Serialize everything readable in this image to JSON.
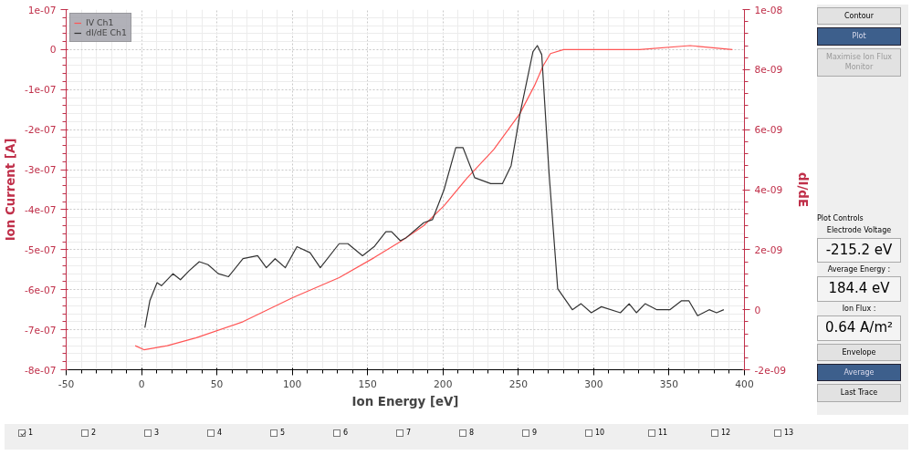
{
  "chart_data": {
    "type": "line",
    "xlabel": "Ion Energy [eV]",
    "ylabel": "Ion Current [A]",
    "y2label": "dI/dE",
    "xlim": [
      -50,
      400
    ],
    "xticks": [
      -50,
      0,
      50,
      100,
      150,
      200,
      250,
      300,
      350,
      400
    ],
    "ylim": [
      -8e-07,
      1e-07
    ],
    "yticks": [
      -8e-07,
      -7e-07,
      -6e-07,
      -5e-07,
      -4e-07,
      -3e-07,
      -2e-07,
      -1e-07,
      0,
      1e-07
    ],
    "y2lim": [
      -2e-09,
      1e-08
    ],
    "y2ticks": [
      -2e-09,
      0,
      2e-09,
      4e-09,
      6e-09,
      8e-09,
      1e-08
    ],
    "grid": true,
    "legend": "top left",
    "marker": "none",
    "line_style": "solid",
    "series": [
      {
        "name": "IV Ch1",
        "color": "#ff5555",
        "x": [
          -4.2,
          1.6,
          17.1,
          36.4,
          67.3,
          100.2,
          131.1,
          154.3,
          171.7,
          187.2,
          200.7,
          216.2,
          233.6,
          251.0,
          260.7,
          266.5,
          271.3,
          280,
          330.3,
          364,
          392
        ],
        "values": [
          -7.4e-07,
          -7.5e-07,
          -7.4e-07,
          -7.2e-07,
          -6.8e-07,
          -6.2e-07,
          -5.7e-07,
          -5.2e-07,
          -4.8e-07,
          -4.4e-07,
          -3.9e-07,
          -3.2e-07,
          -2.5e-07,
          -1.6e-07,
          -9e-08,
          -4e-08,
          -1e-08,
          0,
          0,
          1e-08,
          0
        ]
      },
      {
        "name": "dI/dE Ch1",
        "color": "#333333",
        "axis": "y2",
        "x": [
          2.2,
          5.5,
          10.3,
          13.2,
          20.9,
          25.8,
          31.6,
          38.3,
          44.1,
          50.9,
          57.7,
          67.3,
          77.0,
          82.8,
          88.6,
          95.4,
          103.1,
          111.8,
          118.6,
          131.1,
          136.9,
          146.6,
          154.3,
          162.1,
          165.9,
          171.7,
          175.6,
          187.2,
          193.0,
          200.7,
          208.5,
          213.3,
          221.0,
          231.7,
          239.4,
          245.2,
          251.0,
          259.7,
          262.6,
          265.5,
          270.3,
          276.1,
          285.8,
          291.6,
          298.4,
          305.1,
          317.7,
          323.5,
          328.3,
          334.1,
          341.9,
          350.5,
          358.3,
          363.1,
          368.9,
          376.6,
          381.5,
          386.3
        ],
        "values": [
          -6e-10,
          3e-10,
          9e-10,
          8e-10,
          1.2e-09,
          1e-09,
          1.3e-09,
          1.6e-09,
          1.5e-09,
          1.2e-09,
          1.1e-09,
          1.7e-09,
          1.8e-09,
          1.4e-09,
          1.7e-09,
          1.4e-09,
          2.1e-09,
          1.9e-09,
          1.4e-09,
          2.2e-09,
          2.2e-09,
          1.8e-09,
          2.1e-09,
          2.6e-09,
          2.6e-09,
          2.3e-09,
          2.4e-09,
          2.9e-09,
          3e-09,
          4e-09,
          5.4e-09,
          5.4e-09,
          4.4e-09,
          4.2e-09,
          4.2e-09,
          4.8e-09,
          6.5e-09,
          8.6e-09,
          8.8e-09,
          8.5e-09,
          4.6e-09,
          7e-10,
          0,
          2e-10,
          -1e-10,
          1e-10,
          -1e-10,
          2e-10,
          -1e-10,
          2e-10,
          0,
          0,
          3e-10,
          3e-10,
          -2e-10,
          0,
          -1e-10,
          0
        ]
      }
    ],
    "annotations": [
      "Contour",
      "Plot",
      "Maximise Ion Flux Monitor",
      "Plot Controls",
      "Electrode Voltage",
      "-215.2 eV",
      "Average Energy :",
      "184.4 eV",
      "Ion Flux :",
      "0.64 A/m²",
      "Envelope",
      "Average",
      "Last Trace",
      "1",
      "2",
      "3",
      "4",
      "5",
      "6",
      "7",
      "8",
      "9",
      "10",
      "11",
      "12",
      "13"
    ]
  }
}
